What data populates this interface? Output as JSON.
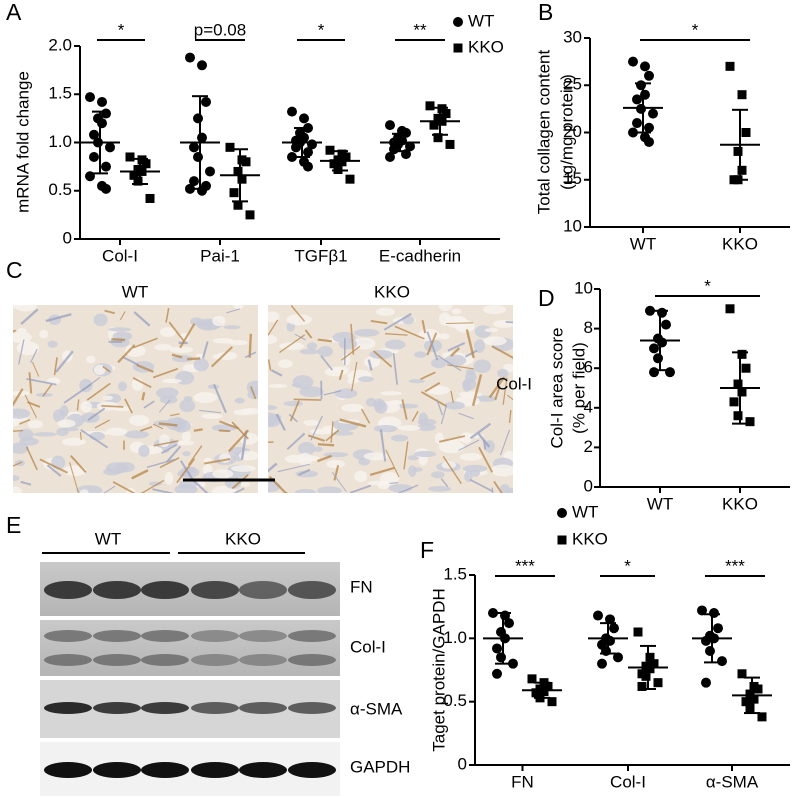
{
  "chart_data": [
    {
      "type": "dot",
      "ylabel": [
        "mRNA fold change"
      ],
      "categories": [
        "Col-I",
        "Pai-1",
        "TGFβ1",
        "E-cadherin"
      ],
      "series": [
        {
          "name": "WT",
          "color": "#000000",
          "marker": "circle",
          "values": [
            [
              1.47,
              1.42,
              1.3,
              1.25,
              1.2,
              1.08,
              1.0,
              0.95,
              0.85,
              0.75,
              0.65,
              0.55,
              0.52
            ],
            [
              1.88,
              1.8,
              1.42,
              1.25,
              1.05,
              0.95,
              0.85,
              0.7,
              0.6,
              0.55,
              0.52,
              0.5
            ],
            [
              1.32,
              1.25,
              1.15,
              1.1,
              1.05,
              1.02,
              1.0,
              0.98,
              0.95,
              0.9,
              0.85,
              0.8,
              0.75
            ],
            [
              1.18,
              1.12,
              1.1,
              1.05,
              1.02,
              1.0,
              0.98,
              0.96,
              0.93,
              0.88,
              0.85
            ]
          ],
          "means": [
            1.0,
            1.0,
            1.0,
            1.0
          ],
          "sds": [
            0.32,
            0.48,
            0.15,
            0.09
          ]
        },
        {
          "name": "KKO",
          "color": "#000000",
          "marker": "square",
          "values": [
            [
              0.85,
              0.82,
              0.78,
              0.72,
              0.7,
              0.66,
              0.6,
              0.42
            ],
            [
              0.95,
              0.82,
              0.8,
              0.7,
              0.62,
              0.48,
              0.35,
              0.25
            ],
            [
              0.92,
              0.88,
              0.85,
              0.82,
              0.8,
              0.78,
              0.72,
              0.62
            ],
            [
              1.38,
              1.35,
              1.3,
              1.25,
              1.22,
              1.18,
              1.05,
              0.98
            ]
          ],
          "means": [
            0.7,
            0.66,
            0.81,
            1.22
          ],
          "sds": [
            0.13,
            0.27,
            0.1,
            0.14
          ]
        }
      ],
      "annotations": [
        "*",
        "p=0.08",
        "*",
        "**"
      ],
      "ylim": [
        0,
        2.0
      ],
      "yticks": [
        0,
        0.5,
        {
          "value": 1,
          "label": "1.0"
        },
        1.5,
        {
          "value": 2,
          "label": "2.0"
        }
      ],
      "legend": "top-right"
    },
    {
      "type": "dot",
      "ylabel": [
        "Total collagen content",
        "(µg/mg protein)"
      ],
      "categories": [
        "WT",
        "KKO"
      ],
      "markers": [
        "circle",
        "square"
      ],
      "color": "#000000",
      "values": [
        [
          27.5,
          27,
          26,
          25,
          24,
          23.5,
          22.5,
          22,
          21,
          20.5,
          20,
          19.5,
          19
        ],
        [
          27,
          24,
          20,
          18,
          16,
          15,
          15
        ]
      ],
      "means": [
        22.6,
        18.7
      ],
      "sds": [
        2.6,
        3.7
      ],
      "annotations": [
        "*"
      ],
      "ylim": [
        10,
        30
      ],
      "yticks": [
        10,
        15,
        20,
        25,
        30
      ]
    },
    {
      "type": "dot",
      "ylabel": [
        "Col-I area score",
        "(% per field)"
      ],
      "categories": [
        "WT",
        "KKO"
      ],
      "markers": [
        "circle",
        "square"
      ],
      "color": "#000000",
      "values": [
        [
          8.9,
          8.8,
          8.2,
          7.5,
          7.3,
          7.0,
          6.5,
          5.8,
          5.8
        ],
        [
          9.0,
          6.7,
          6.0,
          5.2,
          4.8,
          4.3,
          3.6,
          3.3
        ]
      ],
      "means": [
        7.4,
        5.0
      ],
      "sds": [
        1.5,
        1.8
      ],
      "annotations": [
        "*"
      ],
      "ylim": [
        0,
        10
      ],
      "yticks": [
        0,
        2,
        4,
        6,
        8,
        10
      ]
    },
    {
      "type": "dot",
      "ylabel": [
        "Taget protein/GAPDH"
      ],
      "categories": [
        "FN",
        "Col-I",
        "α-SMA"
      ],
      "series": [
        {
          "name": "WT",
          "color": "#000000",
          "marker": "circle",
          "values": [
            [
              1.2,
              1.18,
              1.12,
              1.05,
              1.0,
              0.92,
              0.85,
              0.8,
              0.72
            ],
            [
              1.18,
              1.15,
              1.08,
              1.0,
              0.98,
              0.95,
              0.9,
              0.85,
              0.8
            ],
            [
              1.22,
              1.2,
              1.08,
              1.02,
              1.0,
              0.98,
              0.9,
              0.82,
              0.65
            ]
          ],
          "means": [
            1.0,
            1.0,
            1.0
          ],
          "sds": [
            0.2,
            0.12,
            0.19
          ]
        },
        {
          "name": "KKO",
          "color": "#000000",
          "marker": "square",
          "values": [
            [
              0.68,
              0.65,
              0.62,
              0.6,
              0.58,
              0.57,
              0.53,
              0.5
            ],
            [
              1.05,
              0.85,
              0.8,
              0.78,
              0.76,
              0.72,
              0.7,
              0.65,
              0.62
            ],
            [
              0.72,
              0.62,
              0.6,
              0.56,
              0.52,
              0.5,
              0.45,
              0.38
            ]
          ],
          "means": [
            0.59,
            0.77,
            0.55
          ],
          "sds": [
            0.06,
            0.17,
            0.14
          ]
        }
      ],
      "annotations": [
        "***",
        "*",
        "***"
      ],
      "ylim": [
        0,
        1.5
      ],
      "yticks": [
        0,
        0.5,
        {
          "value": 1,
          "label": "1.0"
        },
        1.5
      ],
      "legend": "top-left"
    }
  ],
  "figure": {
    "panel_labels": [
      "A",
      "B",
      "C",
      "D",
      "E",
      "F"
    ],
    "histology": {
      "titles": [
        "WT",
        "KKO"
      ],
      "side_label": "Col-I"
    },
    "blot": {
      "groups": [
        "WT",
        "KKO"
      ],
      "bands": [
        "FN",
        "Col-I",
        "α-SMA",
        "GAPDH"
      ]
    }
  }
}
